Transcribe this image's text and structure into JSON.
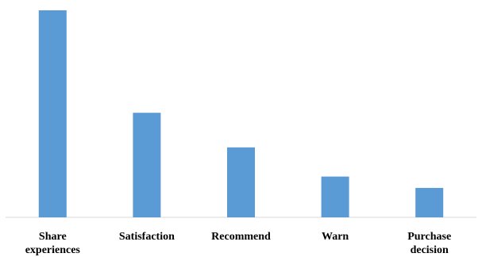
{
  "chart_data": {
    "type": "bar",
    "categories": [
      [
        "Share",
        "experiences"
      ],
      [
        "Satisfaction"
      ],
      [
        "Recommend"
      ],
      [
        "Warn"
      ],
      [
        "Purchase",
        "decision"
      ]
    ],
    "values": [
      100,
      50.5,
      33.8,
      19.7,
      14.2
    ],
    "ylim": [
      0,
      100
    ],
    "grid": false,
    "legend": "none",
    "bar_color": "#5B9BD5",
    "axis_color": "#D9D9D9"
  }
}
